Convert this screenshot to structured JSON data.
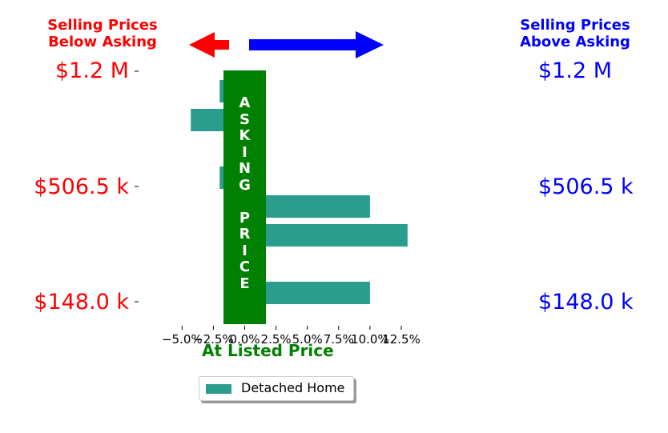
{
  "header": {
    "left_title": "Selling Prices\nBelow Asking",
    "right_title": "Selling Prices\nAbove Asking"
  },
  "price_labels": {
    "left": [
      "$1.2 M",
      "$506.5 k",
      "$148.0 k"
    ],
    "right": [
      "$1.2 M",
      "$506.5 k",
      "$148.0 k"
    ]
  },
  "asking_column": {
    "letters": [
      "A",
      "S",
      "K",
      "I",
      "N",
      "G",
      "",
      "P",
      "R",
      "I",
      "C",
      "E"
    ]
  },
  "xlabel": "At Listed Price",
  "legend": {
    "label": "Detached Home"
  },
  "colors": {
    "bar": "#2a9d8f",
    "asking_column": "#008000",
    "below": "#ff0000",
    "above": "#0000ff",
    "xlabel": "#008000"
  },
  "chart_data": {
    "type": "bar",
    "orientation": "horizontal",
    "series": [
      {
        "name": "Detached Home",
        "values": [
          -2.0,
          -4.3,
          1.0,
          -2.0,
          10.0,
          13.0,
          1.0,
          10.0
        ]
      }
    ],
    "x_ticks": [
      "−5.0%",
      "−2.5%",
      "0.0%",
      "2.5%",
      "5.0%",
      "7.5%",
      "10.0%",
      "12.5%"
    ],
    "x_tick_values": [
      -5.0,
      -2.5,
      0.0,
      2.5,
      5.0,
      7.5,
      10.0,
      12.5
    ],
    "xlim": [
      -5.0,
      13.0
    ],
    "xlabel": "At Listed Price",
    "legend": "lower center",
    "grid": false
  }
}
